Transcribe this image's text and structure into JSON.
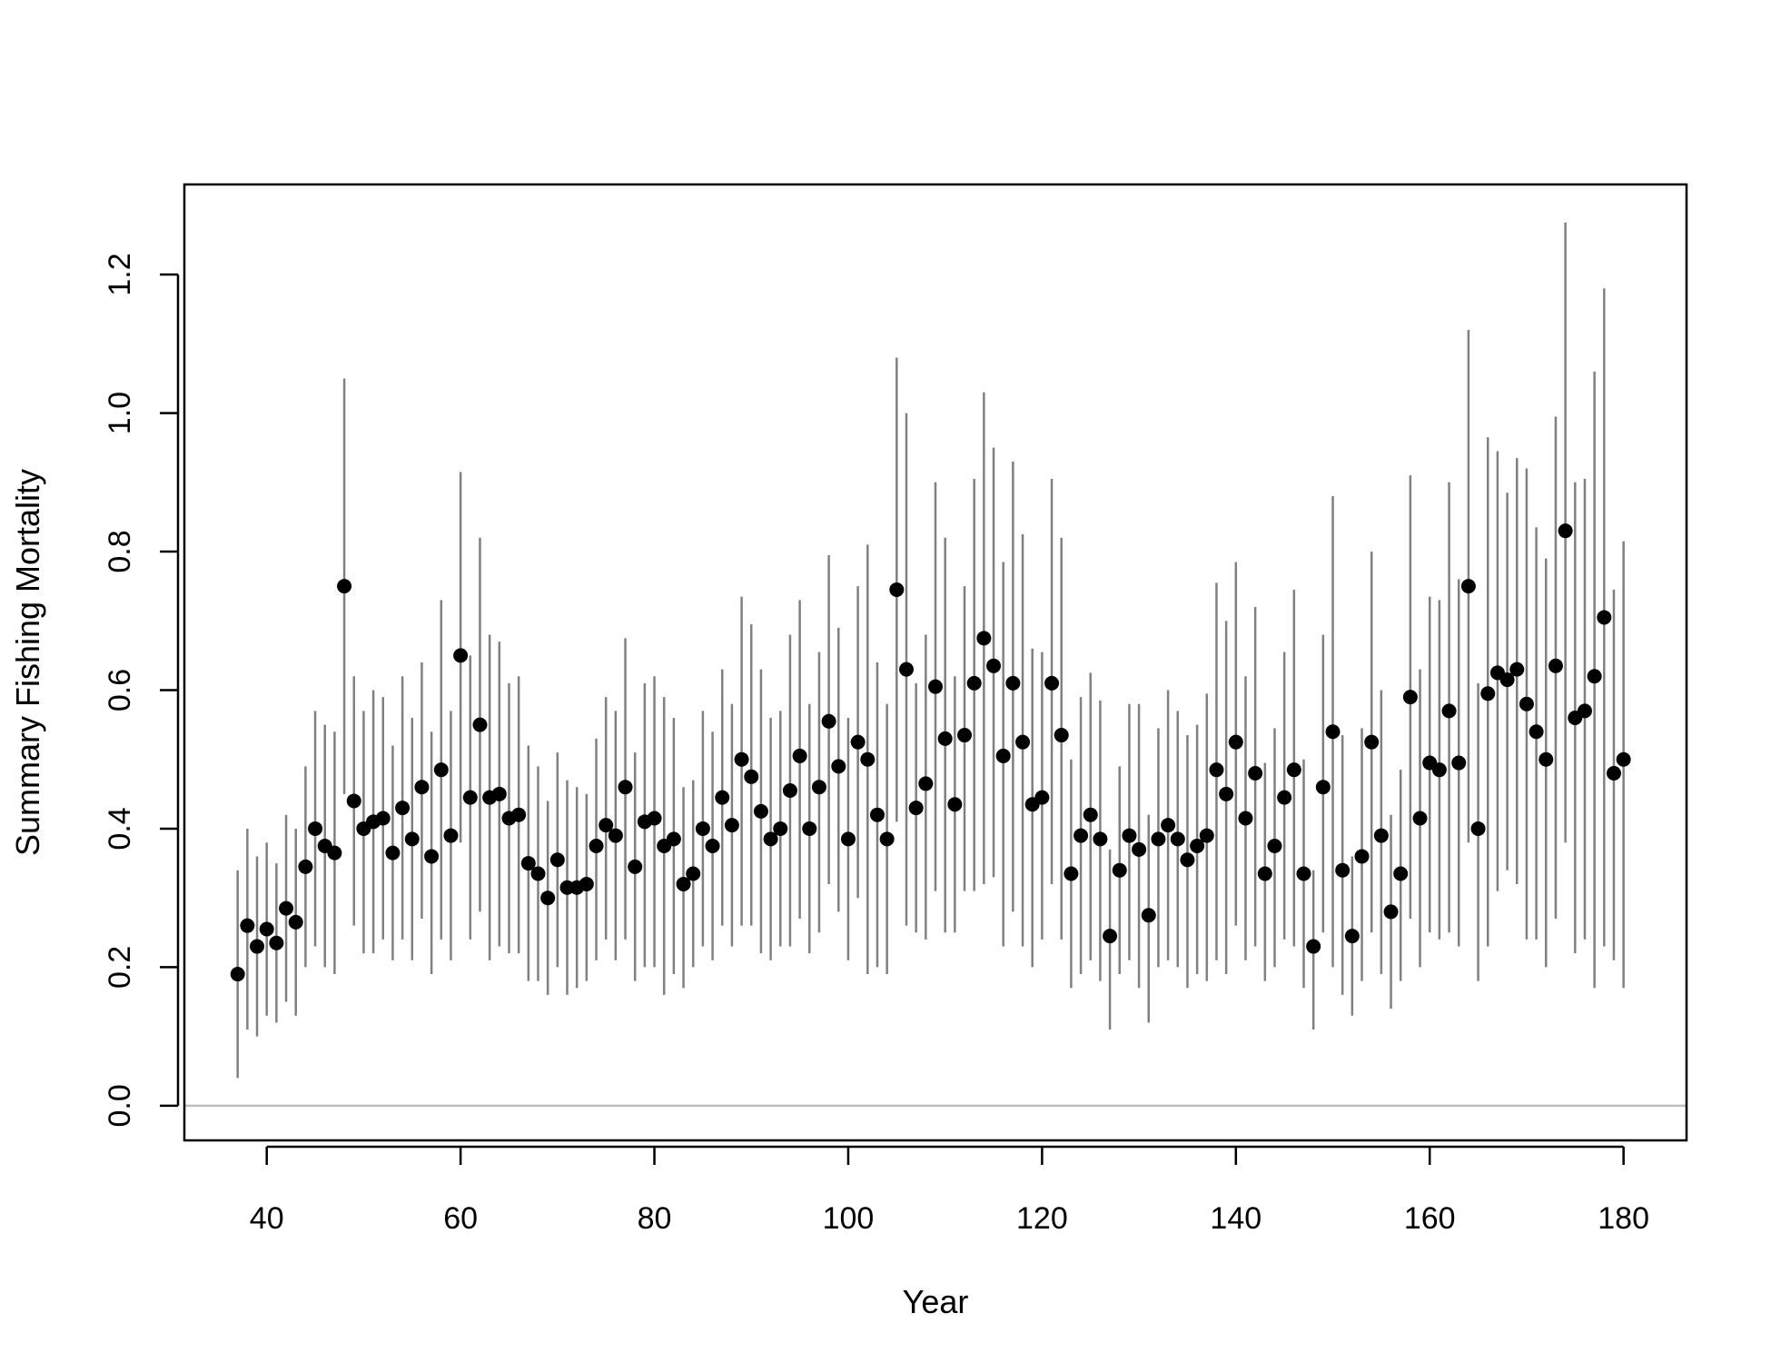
{
  "chart_data": {
    "type": "scatter",
    "title": "",
    "xlabel": "Year",
    "ylabel": "Summary Fishing Mortality",
    "xlim": [
      31.5,
      186.5
    ],
    "ylim": [
      -0.05,
      1.33
    ],
    "xticks": [
      40,
      60,
      80,
      100,
      120,
      140,
      160,
      180
    ],
    "yticks": [
      0.0,
      0.2,
      0.4,
      0.6,
      0.8,
      1.0,
      1.2
    ],
    "ytick_labels": [
      "0.0",
      "0.2",
      "0.4",
      "0.6",
      "0.8",
      "1.0",
      "1.2"
    ],
    "reference_line": {
      "y": 0,
      "color": "#bebebe"
    },
    "grid": false,
    "colors": {
      "points": "#000000",
      "error_bars": "#808080",
      "frame": "#000000"
    },
    "x": [
      37,
      38,
      39,
      40,
      41,
      42,
      43,
      44,
      45,
      46,
      47,
      48,
      49,
      50,
      51,
      52,
      53,
      54,
      55,
      56,
      57,
      58,
      59,
      60,
      61,
      62,
      63,
      64,
      65,
      66,
      67,
      68,
      69,
      70,
      71,
      72,
      73,
      74,
      75,
      76,
      77,
      78,
      79,
      80,
      81,
      82,
      83,
      84,
      85,
      86,
      87,
      88,
      89,
      90,
      91,
      92,
      93,
      94,
      95,
      96,
      97,
      98,
      99,
      100,
      101,
      102,
      103,
      104,
      105,
      106,
      107,
      108,
      109,
      110,
      111,
      112,
      113,
      114,
      115,
      116,
      117,
      118,
      119,
      120,
      121,
      122,
      123,
      124,
      125,
      126,
      127,
      128,
      129,
      130,
      131,
      132,
      133,
      134,
      135,
      136,
      137,
      138,
      139,
      140,
      141,
      142,
      143,
      144,
      145,
      146,
      147,
      148,
      149,
      150,
      151,
      152,
      153,
      154,
      155,
      156,
      157,
      158,
      159,
      160,
      161,
      162,
      163,
      164,
      165,
      166,
      167,
      168,
      169,
      170,
      171,
      172,
      173,
      174,
      175,
      176,
      177,
      178,
      179,
      180
    ],
    "y": [
      0.19,
      0.26,
      0.23,
      0.255,
      0.235,
      0.285,
      0.265,
      0.345,
      0.4,
      0.375,
      0.365,
      0.75,
      0.44,
      0.4,
      0.41,
      0.415,
      0.365,
      0.43,
      0.385,
      0.46,
      0.36,
      0.485,
      0.39,
      0.65,
      0.445,
      0.55,
      0.445,
      0.45,
      0.415,
      0.42,
      0.35,
      0.335,
      0.3,
      0.355,
      0.315,
      0.315,
      0.32,
      0.375,
      0.405,
      0.39,
      0.46,
      0.345,
      0.41,
      0.415,
      0.375,
      0.385,
      0.32,
      0.335,
      0.4,
      0.375,
      0.445,
      0.405,
      0.5,
      0.475,
      0.425,
      0.385,
      0.4,
      0.455,
      0.505,
      0.4,
      0.46,
      0.555,
      0.49,
      0.385,
      0.525,
      0.5,
      0.42,
      0.385,
      0.745,
      0.63,
      0.43,
      0.465,
      0.605,
      0.53,
      0.435,
      0.535,
      0.61,
      0.675,
      0.635,
      0.505,
      0.61,
      0.525,
      0.435,
      0.445,
      0.61,
      0.535,
      0.335,
      0.39,
      0.42,
      0.385,
      0.245,
      0.34,
      0.39,
      0.37,
      0.275,
      0.385,
      0.405,
      0.385,
      0.355,
      0.375,
      0.39,
      0.485,
      0.45,
      0.525,
      0.415,
      0.48,
      0.335,
      0.375,
      0.445,
      0.485,
      0.335,
      0.23,
      0.46,
      0.54,
      0.34,
      0.245,
      0.36,
      0.525,
      0.39,
      0.28,
      0.335,
      0.59,
      0.415,
      0.495,
      0.485,
      0.57,
      0.495,
      0.75,
      0.4,
      0.595,
      0.625,
      0.615,
      0.63,
      0.58,
      0.54,
      0.5,
      0.635,
      0.83,
      0.56,
      0.57,
      0.62,
      0.705,
      0.48,
      0.5
    ],
    "lower": [
      0.04,
      0.11,
      0.1,
      0.13,
      0.12,
      0.15,
      0.13,
      0.2,
      0.23,
      0.2,
      0.19,
      0.45,
      0.26,
      0.22,
      0.22,
      0.24,
      0.21,
      0.24,
      0.21,
      0.27,
      0.19,
      0.24,
      0.21,
      0.38,
      0.24,
      0.28,
      0.21,
      0.23,
      0.22,
      0.22,
      0.18,
      0.18,
      0.16,
      0.2,
      0.16,
      0.17,
      0.18,
      0.21,
      0.24,
      0.21,
      0.24,
      0.18,
      0.2,
      0.2,
      0.16,
      0.19,
      0.17,
      0.2,
      0.23,
      0.21,
      0.26,
      0.23,
      0.26,
      0.26,
      0.22,
      0.21,
      0.23,
      0.23,
      0.27,
      0.22,
      0.25,
      0.32,
      0.28,
      0.21,
      0.3,
      0.19,
      0.2,
      0.19,
      0.41,
      0.26,
      0.25,
      0.24,
      0.31,
      0.25,
      0.25,
      0.31,
      0.31,
      0.32,
      0.33,
      0.23,
      0.28,
      0.23,
      0.2,
      0.24,
      0.32,
      0.24,
      0.17,
      0.19,
      0.21,
      0.18,
      0.11,
      0.19,
      0.21,
      0.17,
      0.12,
      0.2,
      0.21,
      0.2,
      0.17,
      0.19,
      0.18,
      0.21,
      0.19,
      0.26,
      0.21,
      0.23,
      0.18,
      0.2,
      0.24,
      0.23,
      0.17,
      0.11,
      0.25,
      0.2,
      0.16,
      0.13,
      0.18,
      0.25,
      0.19,
      0.14,
      0.18,
      0.27,
      0.2,
      0.25,
      0.24,
      0.25,
      0.23,
      0.38,
      0.18,
      0.23,
      0.31,
      0.34,
      0.32,
      0.24,
      0.24,
      0.2,
      0.27,
      0.38,
      0.22,
      0.24,
      0.17,
      0.23,
      0.21,
      0.17
    ],
    "upper": [
      0.34,
      0.4,
      0.36,
      0.38,
      0.35,
      0.42,
      0.4,
      0.49,
      0.57,
      0.55,
      0.54,
      1.05,
      0.62,
      0.57,
      0.6,
      0.59,
      0.52,
      0.62,
      0.56,
      0.64,
      0.54,
      0.73,
      0.57,
      0.915,
      0.65,
      0.82,
      0.68,
      0.67,
      0.61,
      0.62,
      0.52,
      0.49,
      0.44,
      0.51,
      0.47,
      0.46,
      0.45,
      0.53,
      0.59,
      0.57,
      0.675,
      0.51,
      0.61,
      0.62,
      0.59,
      0.56,
      0.46,
      0.47,
      0.57,
      0.54,
      0.63,
      0.58,
      0.735,
      0.695,
      0.63,
      0.56,
      0.57,
      0.68,
      0.73,
      0.58,
      0.655,
      0.795,
      0.69,
      0.56,
      0.75,
      0.81,
      0.64,
      0.58,
      1.08,
      1.0,
      0.61,
      0.68,
      0.9,
      0.82,
      0.62,
      0.75,
      0.905,
      1.03,
      0.95,
      0.785,
      0.93,
      0.825,
      0.66,
      0.655,
      0.905,
      0.82,
      0.5,
      0.59,
      0.625,
      0.585,
      0.37,
      0.49,
      0.58,
      0.58,
      0.42,
      0.545,
      0.6,
      0.57,
      0.535,
      0.55,
      0.595,
      0.755,
      0.7,
      0.785,
      0.62,
      0.72,
      0.495,
      0.545,
      0.655,
      0.745,
      0.5,
      0.34,
      0.68,
      0.88,
      0.535,
      0.36,
      0.545,
      0.8,
      0.6,
      0.42,
      0.485,
      0.91,
      0.63,
      0.735,
      0.73,
      0.9,
      0.76,
      1.12,
      0.61,
      0.965,
      0.945,
      0.885,
      0.935,
      0.92,
      0.835,
      0.79,
      0.995,
      1.275,
      0.9,
      0.905,
      1.06,
      1.18,
      0.745,
      0.815
    ]
  }
}
